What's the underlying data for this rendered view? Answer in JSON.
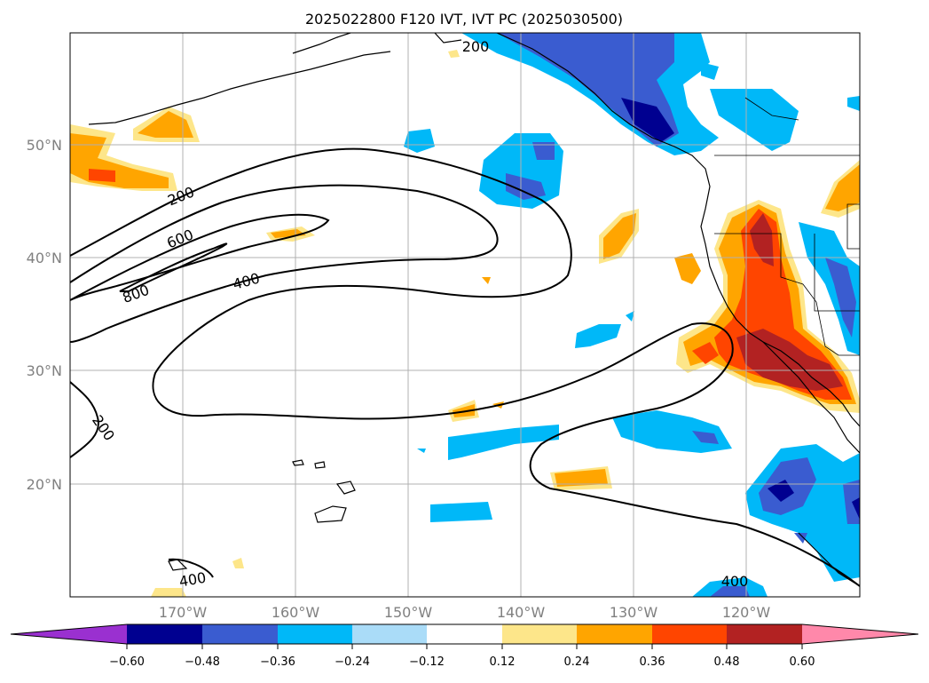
{
  "title": "2025022800 F120 IVT, IVT PC (2025030500)",
  "lat_labels": [
    "50°N",
    "40°N",
    "30°N",
    "20°N"
  ],
  "lon_labels": [
    "170°W",
    "160°W",
    "150°W",
    "140°W",
    "130°W",
    "120°W"
  ],
  "contour_labels": [
    "200",
    "200",
    "600",
    "400",
    "800",
    "200",
    "400",
    "400"
  ],
  "colorbar": {
    "tick_labels": [
      "−0.60",
      "−0.48",
      "−0.36",
      "−0.24",
      "−0.12",
      "0.12",
      "0.24",
      "0.36",
      "0.48",
      "0.60"
    ],
    "colors": {
      "under": "#9a30d0",
      "n060": "#000090",
      "n048": "#3a5cd0",
      "n036": "#00b8f8",
      "n024": "#aadcf8",
      "neutral": "#ffffff",
      "p012": "#fde68a",
      "p024": "#ffa500",
      "p036": "#ff4500",
      "p048": "#b22222",
      "over": "#ff88aa"
    }
  },
  "map": {
    "lat_range": [
      "10°N",
      "60°N"
    ],
    "lon_range": [
      "180°",
      "110°W"
    ],
    "grid": true
  }
}
